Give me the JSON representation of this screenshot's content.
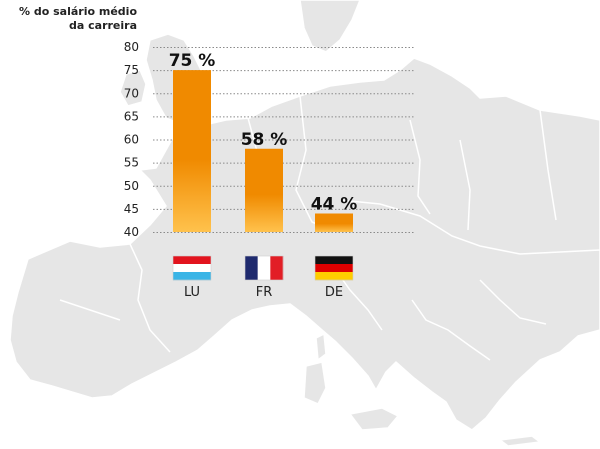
{
  "chart_data": {
    "type": "bar",
    "ylabel": "% do salário médio da carreira",
    "ylabel_lines": [
      "% do salário médio",
      "da carreira"
    ],
    "categories": [
      "LU",
      "FR",
      "DE"
    ],
    "values": [
      75,
      58,
      44
    ],
    "data_labels": [
      "75 %",
      "58 %",
      "44 %"
    ],
    "y_ticks": [
      40,
      45,
      50,
      55,
      60,
      65,
      70,
      75,
      80
    ],
    "ylim": [
      40,
      80
    ],
    "grid": true,
    "bar_color_top": "#f08a00",
    "bar_color_bottom": "#ffc24d"
  },
  "flags": [
    {
      "country": "LU",
      "icon": "flag-luxembourg-icon",
      "stripes": [
        "#e2141e",
        "#ffffff",
        "#3ab4e6"
      ],
      "orientation": "horizontal"
    },
    {
      "country": "FR",
      "icon": "flag-france-icon",
      "stripes": [
        "#1f2a6e",
        "#ffffff",
        "#e21e26"
      ],
      "orientation": "vertical"
    },
    {
      "country": "DE",
      "icon": "flag-germany-icon",
      "stripes": [
        "#111111",
        "#dd0000",
        "#ffcc00"
      ],
      "orientation": "horizontal"
    }
  ],
  "colors": {
    "map_fill": "#e6e6e6",
    "map_border": "#ffffff",
    "grid": "#8a8a8a",
    "text": "#222222"
  }
}
